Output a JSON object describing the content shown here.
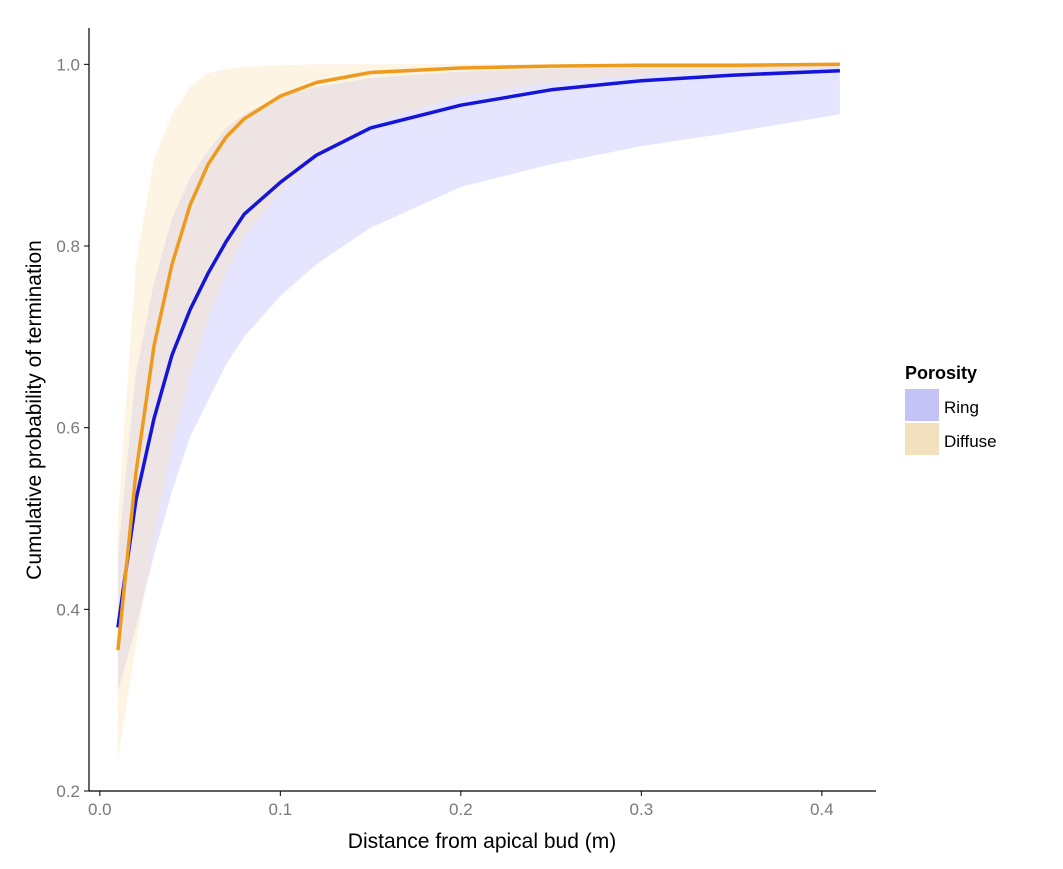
{
  "chart_data": {
    "type": "line",
    "xlabel": "Distance from apical bud (m)",
    "ylabel": "Cumulative probability of termination",
    "xlim": [
      -0.006,
      0.43
    ],
    "ylim": [
      0.2,
      1.04
    ],
    "x_ticks": [
      {
        "value": 0.0,
        "label": "0.0"
      },
      {
        "value": 0.1,
        "label": "0.1"
      },
      {
        "value": 0.2,
        "label": "0.2"
      },
      {
        "value": 0.3,
        "label": "0.3"
      },
      {
        "value": 0.4,
        "label": "0.4"
      }
    ],
    "y_ticks": [
      {
        "value": 0.2,
        "label": "0.2"
      },
      {
        "value": 0.4,
        "label": "0.4"
      },
      {
        "value": 0.6,
        "label": "0.6"
      },
      {
        "value": 0.8,
        "label": "0.8"
      },
      {
        "value": 1.0,
        "label": "1.0"
      }
    ],
    "grid": false,
    "legend": {
      "title": "Porosity",
      "position": "right",
      "entries": [
        {
          "label": "Ring",
          "color": "#c3c3f5"
        },
        {
          "label": "Diffuse",
          "color": "#f3e0be"
        }
      ]
    },
    "series": [
      {
        "name": "Ring",
        "line_color": "#1515d9",
        "band_color": "#a9a9ff",
        "band_opacity": 0.3,
        "x": [
          0.01,
          0.02,
          0.03,
          0.04,
          0.05,
          0.06,
          0.07,
          0.08,
          0.1,
          0.12,
          0.15,
          0.2,
          0.25,
          0.3,
          0.35,
          0.41
        ],
        "y": [
          0.38,
          0.52,
          0.61,
          0.68,
          0.73,
          0.77,
          0.805,
          0.835,
          0.87,
          0.9,
          0.93,
          0.955,
          0.972,
          0.982,
          0.988,
          0.993
        ],
        "lower": [
          0.31,
          0.38,
          0.46,
          0.53,
          0.59,
          0.63,
          0.67,
          0.7,
          0.745,
          0.78,
          0.82,
          0.865,
          0.89,
          0.91,
          0.925,
          0.945
        ],
        "upper": [
          0.46,
          0.66,
          0.76,
          0.83,
          0.875,
          0.905,
          0.93,
          0.945,
          0.965,
          0.975,
          0.985,
          0.992,
          0.995,
          0.997,
          0.998,
          0.999
        ]
      },
      {
        "name": "Diffuse",
        "line_color": "#ee9a1d",
        "band_color": "#fbe3b8",
        "band_opacity": 0.4,
        "x": [
          0.01,
          0.02,
          0.03,
          0.04,
          0.05,
          0.06,
          0.07,
          0.08,
          0.1,
          0.12,
          0.15,
          0.2,
          0.25,
          0.3,
          0.35,
          0.41
        ],
        "y": [
          0.355,
          0.55,
          0.69,
          0.78,
          0.845,
          0.89,
          0.92,
          0.94,
          0.965,
          0.98,
          0.991,
          0.996,
          0.998,
          0.999,
          0.999,
          1.0
        ],
        "lower": [
          0.235,
          0.36,
          0.48,
          0.58,
          0.66,
          0.72,
          0.77,
          0.81,
          0.86,
          0.895,
          0.935,
          0.965,
          0.98,
          0.988,
          0.993,
          0.996
        ],
        "upper": [
          0.5,
          0.78,
          0.895,
          0.945,
          0.975,
          0.99,
          0.995,
          0.997,
          0.999,
          1.0,
          1.0,
          1.0,
          1.0,
          1.0,
          1.0,
          1.0
        ]
      }
    ]
  }
}
